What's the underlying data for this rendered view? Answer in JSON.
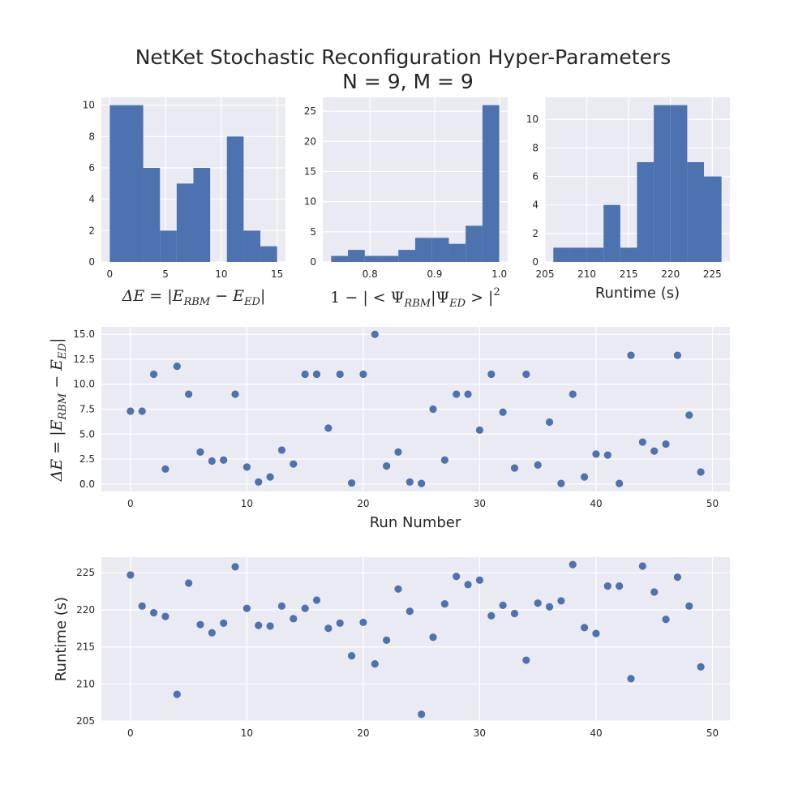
{
  "title_line1": "NetKet Stochastic Reconfiguration Hyper-Parameters",
  "title_line2": "N = 9, M = 9",
  "colors": {
    "bar": "#4c72b0",
    "panel": "#eaeaf2",
    "grid": "#ffffff"
  },
  "chart_data": [
    {
      "type": "bar",
      "subtype": "histogram",
      "xlabel": "ΔE = |E_RBM − E_ED|",
      "xlim": [
        -0.75,
        15.75
      ],
      "ylim": [
        0,
        10.5
      ],
      "xticks": [
        0,
        5,
        10,
        15
      ],
      "yticks": [
        0,
        2,
        4,
        6,
        8,
        10
      ],
      "bins": [
        0,
        1.5,
        3,
        4.5,
        6,
        7.5,
        9,
        10.5,
        12,
        13.5,
        15
      ],
      "counts": [
        10,
        10,
        6,
        2,
        5,
        6,
        0,
        8,
        2,
        1
      ]
    },
    {
      "type": "bar",
      "subtype": "histogram",
      "xlabel": "1 − |<Ψ_RBM|Ψ_ED>|²",
      "xlim": [
        0.727,
        1.013
      ],
      "ylim": [
        0,
        27.3
      ],
      "xticks": [
        0.8,
        0.9,
        1.0
      ],
      "xtick_labels": [
        "0.8",
        "0.9",
        "1.0"
      ],
      "yticks": [
        0,
        5,
        10,
        15,
        20,
        25
      ],
      "bins": [
        0.74,
        0.766,
        0.792,
        0.818,
        0.844,
        0.87,
        0.896,
        0.922,
        0.948,
        0.974,
        1.0
      ],
      "counts": [
        1,
        2,
        1,
        1,
        2,
        4,
        4,
        3,
        6,
        26
      ]
    },
    {
      "type": "bar",
      "subtype": "histogram",
      "xlabel": "Runtime (s)",
      "xlim": [
        205.0,
        227.1
      ],
      "ylim": [
        0,
        11.55
      ],
      "xticks": [
        205,
        210,
        215,
        220,
        225
      ],
      "yticks": [
        0,
        2,
        4,
        6,
        8,
        10
      ],
      "bins": [
        206.0,
        208.0,
        210.0,
        212.0,
        214.0,
        216.0,
        218.0,
        220.0,
        222.0,
        224.0,
        226.1
      ],
      "counts": [
        1,
        1,
        1,
        4,
        1,
        7,
        11,
        11,
        7,
        6
      ]
    },
    {
      "type": "scatter",
      "xlabel": "Run Number",
      "ylabel": "ΔE = |E_RBM − E_ED|",
      "xlim": [
        -2.5,
        51.5
      ],
      "ylim": [
        -0.75,
        15.75
      ],
      "xticks": [
        0,
        10,
        20,
        30,
        40,
        50
      ],
      "yticks": [
        0.0,
        2.5,
        5.0,
        7.5,
        10.0,
        12.5,
        15.0
      ],
      "ytick_labels": [
        "0.0",
        "2.5",
        "5.0",
        "7.5",
        "10.0",
        "12.5",
        "15.0"
      ],
      "x": [
        0,
        1,
        2,
        3,
        4,
        5,
        6,
        7,
        8,
        9,
        10,
        11,
        12,
        13,
        14,
        15,
        16,
        17,
        18,
        19,
        20,
        21,
        22,
        23,
        24,
        25,
        26,
        27,
        28,
        29,
        30,
        31,
        32,
        33,
        34,
        35,
        36,
        37,
        38,
        39,
        40,
        41,
        42,
        43,
        44,
        45,
        46,
        47,
        48,
        49
      ],
      "y": [
        7.3,
        7.3,
        11.0,
        1.5,
        11.8,
        9.0,
        3.2,
        2.3,
        2.4,
        9.0,
        1.7,
        0.2,
        0.7,
        3.4,
        2.0,
        11.0,
        11.0,
        5.6,
        11.0,
        0.1,
        11.0,
        15.0,
        1.8,
        3.2,
        0.2,
        0.05,
        7.5,
        2.4,
        9.0,
        9.0,
        5.4,
        11.0,
        7.2,
        1.6,
        11.0,
        1.9,
        6.2,
        0.05,
        9.0,
        0.7,
        3.0,
        2.9,
        0.05,
        12.9,
        4.2,
        3.3,
        4.0,
        12.9,
        6.9,
        1.2
      ]
    },
    {
      "type": "scatter",
      "xlabel": "",
      "ylabel": "Runtime (s)",
      "xlim": [
        -2.5,
        51.5
      ],
      "ylim": [
        205.0,
        227.1
      ],
      "xticks": [
        0,
        10,
        20,
        30,
        40,
        50
      ],
      "yticks": [
        205,
        210,
        215,
        220,
        225
      ],
      "x": [
        0,
        1,
        2,
        3,
        4,
        5,
        6,
        7,
        8,
        9,
        10,
        11,
        12,
        13,
        14,
        15,
        16,
        17,
        18,
        19,
        20,
        21,
        22,
        23,
        24,
        25,
        26,
        27,
        28,
        29,
        30,
        31,
        32,
        33,
        34,
        35,
        36,
        37,
        38,
        39,
        40,
        41,
        42,
        43,
        44,
        45,
        46,
        47,
        48,
        49
      ],
      "y": [
        224.7,
        220.5,
        219.6,
        219.1,
        208.6,
        223.6,
        218.0,
        216.9,
        218.2,
        225.8,
        220.2,
        217.9,
        217.8,
        220.5,
        218.8,
        220.2,
        221.3,
        217.5,
        218.2,
        213.8,
        218.3,
        212.7,
        215.9,
        222.8,
        219.8,
        205.9,
        216.3,
        220.8,
        224.5,
        223.4,
        224.0,
        219.2,
        220.6,
        219.5,
        213.2,
        220.9,
        220.4,
        221.2,
        226.1,
        217.6,
        216.8,
        223.2,
        223.2,
        210.7,
        225.9,
        222.4,
        218.7,
        224.4,
        220.5,
        212.3
      ]
    }
  ]
}
